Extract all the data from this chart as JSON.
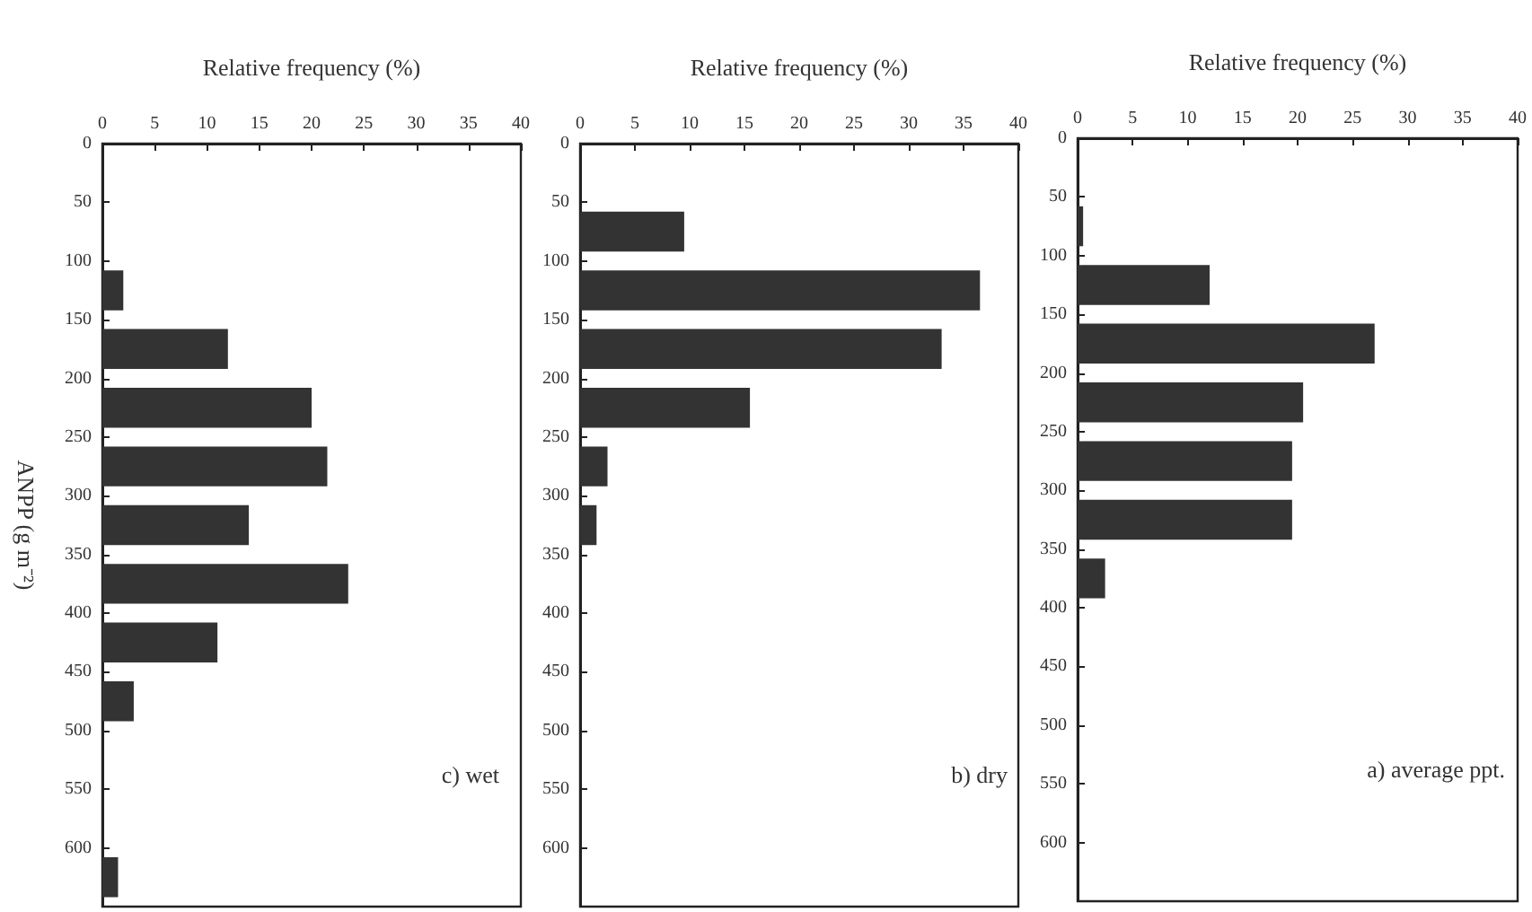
{
  "chart_data": [
    {
      "type": "histogram",
      "orientation": "horizontal",
      "xlabel": "Relative frequency (%)",
      "annotations": [
        "a) average ppt."
      ],
      "bins": [
        0,
        50,
        100,
        150,
        200,
        250,
        300,
        350,
        400,
        450,
        500,
        550,
        600,
        650
      ],
      "values": [
        0,
        0.5,
        12,
        27,
        20.5,
        19.5,
        19.5,
        2.5,
        0,
        0,
        0,
        0,
        0
      ],
      "color": "#333333",
      "ylim": [
        650,
        0
      ],
      "yticks": [
        0,
        50,
        100,
        150,
        200,
        250,
        300,
        350,
        400,
        450,
        500,
        550,
        600
      ],
      "xlim": [
        0,
        40
      ],
      "xticks": [
        0,
        5,
        10,
        15,
        20,
        25,
        30,
        35,
        40
      ]
    },
    {
      "type": "histogram",
      "orientation": "horizontal",
      "xlabel": "Relative frequency (%)",
      "annotations": [
        "b) dry"
      ],
      "bins": [
        0,
        50,
        100,
        150,
        200,
        250,
        300,
        350,
        400,
        450,
        500,
        550,
        600,
        650
      ],
      "values": [
        0,
        9.5,
        36.5,
        33,
        15.5,
        2.5,
        1.5,
        0,
        0,
        0,
        0,
        0,
        0
      ],
      "color": "#333333",
      "ylim": [
        650,
        0
      ],
      "yticks": [
        0,
        50,
        100,
        150,
        200,
        250,
        300,
        350,
        400,
        450,
        500,
        550,
        600
      ],
      "xlim": [
        0,
        40
      ],
      "xticks": [
        0,
        5,
        10,
        15,
        20,
        25,
        30,
        35,
        40
      ]
    },
    {
      "type": "histogram",
      "orientation": "horizontal",
      "xlabel": "Relative frequency (%)",
      "ylabel": "ANPP (g m⁻²)",
      "annotations": [
        "c) wet"
      ],
      "bins": [
        0,
        50,
        100,
        150,
        200,
        250,
        300,
        350,
        400,
        450,
        500,
        550,
        600,
        650
      ],
      "values": [
        0,
        0,
        2,
        12,
        20,
        21.5,
        14,
        23.5,
        11,
        3,
        0,
        0,
        1.5
      ],
      "color": "#333333",
      "ylim": [
        650,
        0
      ],
      "yticks": [
        0,
        50,
        100,
        150,
        200,
        250,
        300,
        350,
        400,
        450,
        500,
        550,
        600
      ],
      "xlim": [
        0,
        40
      ],
      "xticks": [
        0,
        5,
        10,
        15,
        20,
        25,
        30,
        35,
        40
      ]
    }
  ]
}
